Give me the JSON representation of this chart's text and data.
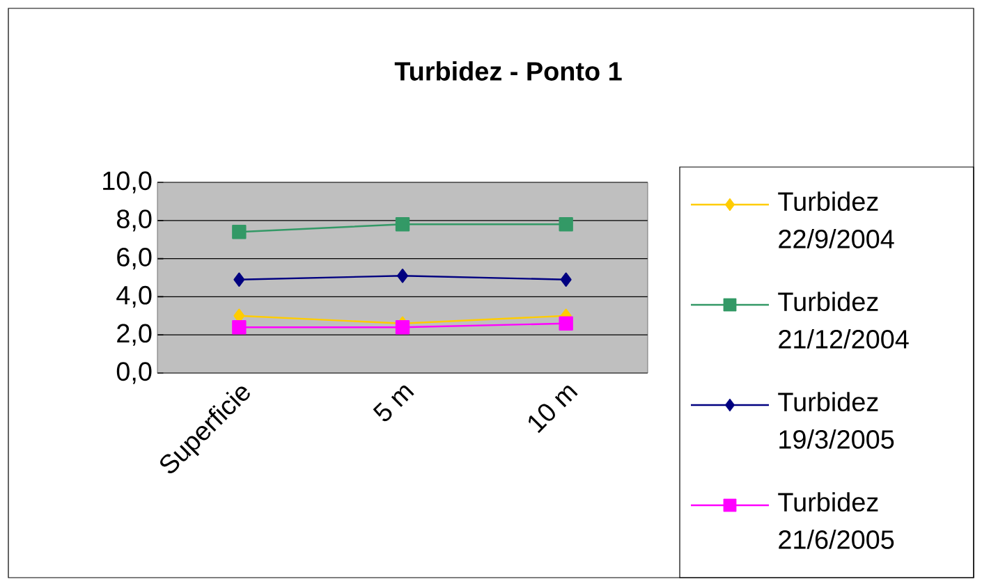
{
  "chart_data": {
    "type": "line",
    "title": "Turbidez - Ponto 1",
    "categories": [
      "Superficie",
      "5 m",
      "10 m"
    ],
    "series": [
      {
        "name": "Turbidez 22/9/2004",
        "color": "#ffcc00",
        "marker": "diamond",
        "values": [
          3.0,
          2.6,
          3.0
        ]
      },
      {
        "name": "Turbidez 21/12/2004",
        "color": "#339966",
        "marker": "square",
        "values": [
          7.4,
          7.8,
          7.8
        ]
      },
      {
        "name": "Turbidez 19/3/2005",
        "color": "#000080",
        "marker": "diamond",
        "values": [
          4.9,
          5.1,
          4.9
        ]
      },
      {
        "name": "Turbidez 21/6/2005",
        "color": "#ff00ff",
        "marker": "square",
        "values": [
          2.4,
          2.4,
          2.6
        ]
      }
    ],
    "ylim": [
      0,
      10
    ],
    "yticks": [
      {
        "value": 0,
        "label": "0,0"
      },
      {
        "value": 2,
        "label": "2,0"
      },
      {
        "value": 4,
        "label": "4,0"
      },
      {
        "value": 6,
        "label": "6,0"
      },
      {
        "value": 8,
        "label": "8,0"
      },
      {
        "value": 10,
        "label": "10,0"
      }
    ],
    "grid": "y",
    "legend": "right"
  }
}
